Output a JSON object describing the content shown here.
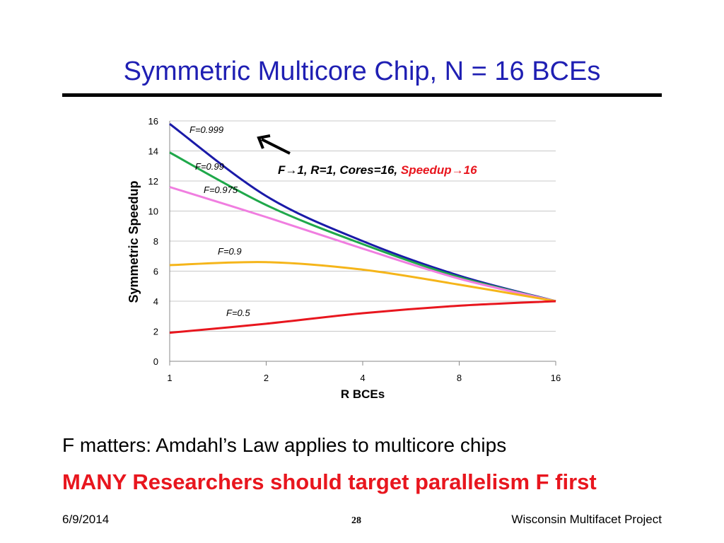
{
  "slide": {
    "title": "Symmetric Multicore Chip, N = 16 BCEs",
    "bullet1": "F matters: Amdahl’s Law applies to multicore chips",
    "bullet2": "MANY Researchers should target parallelism F first",
    "footer_date": "6/9/2014",
    "footer_page": "28",
    "footer_org": "Wisconsin Multifacet Project"
  },
  "chart_data": {
    "type": "line",
    "xlabel": "R BCEs",
    "ylabel": "Symmetric Speedup",
    "x": [
      1,
      2,
      4,
      8,
      16
    ],
    "x_ticks": [
      "1",
      "2",
      "4",
      "8",
      "16"
    ],
    "x_scale": "log2",
    "ylim": [
      0,
      16
    ],
    "y_ticks": [
      "0",
      "2",
      "4",
      "6",
      "8",
      "10",
      "12",
      "14",
      "16"
    ],
    "grid": true,
    "series": [
      {
        "name": "F=0.999",
        "color": "#1a1aa8",
        "values": [
          15.8,
          11.0,
          8.0,
          5.7,
          4.0
        ]
      },
      {
        "name": "F=0.99",
        "color": "#1fa84a",
        "values": [
          13.9,
          10.4,
          7.8,
          5.6,
          4.0
        ]
      },
      {
        "name": "F=0.975",
        "color": "#f07ee0",
        "values": [
          11.6,
          9.6,
          7.5,
          5.5,
          4.0
        ]
      },
      {
        "name": "F=0.9",
        "color": "#f5b51a",
        "values": [
          6.4,
          6.6,
          6.1,
          5.1,
          4.0
        ]
      },
      {
        "name": "F=0.5",
        "color": "#e8161e",
        "values": [
          1.9,
          2.5,
          3.2,
          3.7,
          4.0
        ]
      }
    ],
    "annotation": {
      "arrow": "←",
      "prefix": "F",
      "arrow1": "→",
      "middle": "1, R=1, Cores=16, ",
      "speedup": "Speedup",
      "arrow2": "→",
      "suffix": "16",
      "speedup_color": "#e8161e"
    }
  }
}
